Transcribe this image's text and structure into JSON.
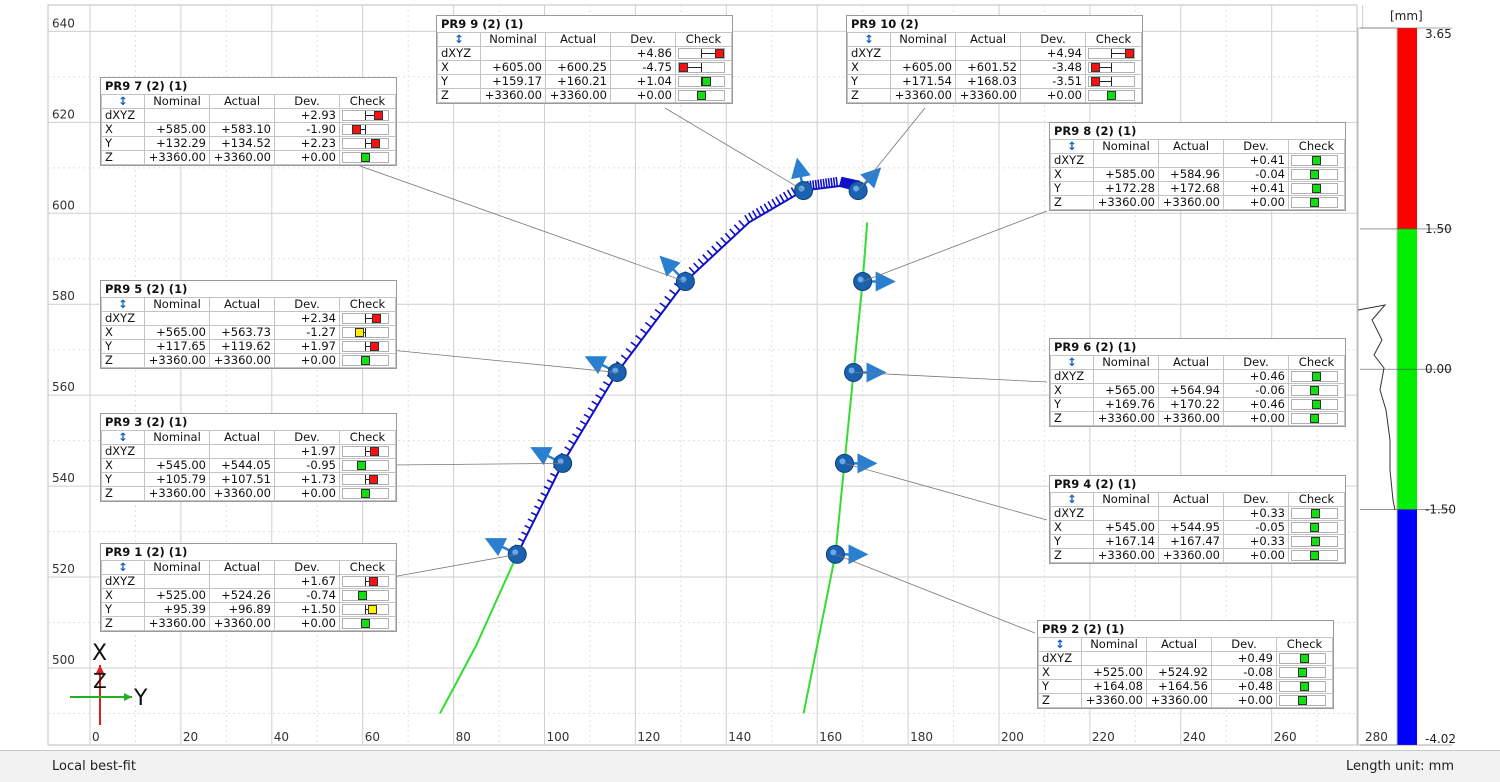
{
  "chart_data": {
    "type": "scatter",
    "title": "",
    "xlabel": "",
    "ylabel": "",
    "xlim": [
      0,
      280
    ],
    "ylim": [
      490,
      645
    ],
    "x_ticks": [
      0,
      20,
      40,
      60,
      80,
      100,
      120,
      140,
      160,
      180,
      200,
      220,
      240,
      260,
      280
    ],
    "y_ticks": [
      500,
      520,
      540,
      560,
      580,
      600,
      620,
      640
    ],
    "grid": true,
    "points": [
      {
        "name": "PR9 1",
        "x": 94,
        "y": 525
      },
      {
        "name": "PR9 3",
        "x": 104,
        "y": 545
      },
      {
        "name": "PR9 5",
        "x": 116,
        "y": 565
      },
      {
        "name": "PR9 7",
        "x": 131,
        "y": 585
      },
      {
        "name": "PR9 9",
        "x": 157,
        "y": 605
      },
      {
        "name": "PR9 10",
        "x": 169,
        "y": 605
      },
      {
        "name": "PR9 8",
        "x": 170,
        "y": 585
      },
      {
        "name": "PR9 6",
        "x": 168,
        "y": 565
      },
      {
        "name": "PR9 4",
        "x": 166,
        "y": 545
      },
      {
        "name": "PR9 2",
        "x": 164,
        "y": 525
      }
    ]
  },
  "axis_labels": {
    "x": "X",
    "z": "Z",
    "y": "Y"
  },
  "colorbar": {
    "unit": "[mm]",
    "labels": [
      "3.65",
      "1.50",
      "0.00",
      "-1.50",
      "-4.02"
    ],
    "values": [
      3.65,
      1.5,
      0.0,
      -1.5,
      -4.02
    ],
    "colors": {
      "high": "#ff0000",
      "mid": "#00ee00",
      "low": "#0000ff"
    }
  },
  "table_headers": [
    "Nominal",
    "Actual",
    "Dev.",
    "Check"
  ],
  "tables": [
    {
      "title": "PR9 9 (2) (1)",
      "rows": [
        [
          "dXYZ",
          "",
          "",
          "+4.86",
          "red"
        ],
        [
          "X",
          "+605.00",
          "+600.25",
          "-4.75",
          "red"
        ],
        [
          "Y",
          "+159.17",
          "+160.21",
          "+1.04",
          "green"
        ],
        [
          "Z",
          "+3360.00",
          "+3360.00",
          "+0.00",
          "green"
        ]
      ]
    },
    {
      "title": "PR9 10 (2)",
      "rows": [
        [
          "dXYZ",
          "",
          "",
          "+4.94",
          "red"
        ],
        [
          "X",
          "+605.00",
          "+601.52",
          "-3.48",
          "red"
        ],
        [
          "Y",
          "+171.54",
          "+168.03",
          "-3.51",
          "red"
        ],
        [
          "Z",
          "+3360.00",
          "+3360.00",
          "+0.00",
          "green"
        ]
      ]
    },
    {
      "title": "PR9 7 (2) (1)",
      "rows": [
        [
          "dXYZ",
          "",
          "",
          "+2.93",
          "red"
        ],
        [
          "X",
          "+585.00",
          "+583.10",
          "-1.90",
          "red"
        ],
        [
          "Y",
          "+132.29",
          "+134.52",
          "+2.23",
          "red"
        ],
        [
          "Z",
          "+3360.00",
          "+3360.00",
          "+0.00",
          "green"
        ]
      ]
    },
    {
      "title": "PR9 8 (2) (1)",
      "rows": [
        [
          "dXYZ",
          "",
          "",
          "+0.41",
          "green"
        ],
        [
          "X",
          "+585.00",
          "+584.96",
          "-0.04",
          "green"
        ],
        [
          "Y",
          "+172.28",
          "+172.68",
          "+0.41",
          "green"
        ],
        [
          "Z",
          "+3360.00",
          "+3360.00",
          "+0.00",
          "green"
        ]
      ]
    },
    {
      "title": "PR9 5 (2) (1)",
      "rows": [
        [
          "dXYZ",
          "",
          "",
          "+2.34",
          "red"
        ],
        [
          "X",
          "+565.00",
          "+563.73",
          "-1.27",
          "yellow"
        ],
        [
          "Y",
          "+117.65",
          "+119.62",
          "+1.97",
          "red"
        ],
        [
          "Z",
          "+3360.00",
          "+3360.00",
          "+0.00",
          "green"
        ]
      ]
    },
    {
      "title": "PR9 6 (2) (1)",
      "rows": [
        [
          "dXYZ",
          "",
          "",
          "+0.46",
          "green"
        ],
        [
          "X",
          "+565.00",
          "+564.94",
          "-0.06",
          "green"
        ],
        [
          "Y",
          "+169.76",
          "+170.22",
          "+0.46",
          "green"
        ],
        [
          "Z",
          "+3360.00",
          "+3360.00",
          "+0.00",
          "green"
        ]
      ]
    },
    {
      "title": "PR9 3 (2) (1)",
      "rows": [
        [
          "dXYZ",
          "",
          "",
          "+1.97",
          "red"
        ],
        [
          "X",
          "+545.00",
          "+544.05",
          "-0.95",
          "green"
        ],
        [
          "Y",
          "+105.79",
          "+107.51",
          "+1.73",
          "red"
        ],
        [
          "Z",
          "+3360.00",
          "+3360.00",
          "+0.00",
          "green"
        ]
      ]
    },
    {
      "title": "PR9 4 (2) (1)",
      "rows": [
        [
          "dXYZ",
          "",
          "",
          "+0.33",
          "green"
        ],
        [
          "X",
          "+545.00",
          "+544.95",
          "-0.05",
          "green"
        ],
        [
          "Y",
          "+167.14",
          "+167.47",
          "+0.33",
          "green"
        ],
        [
          "Z",
          "+3360.00",
          "+3360.00",
          "+0.00",
          "green"
        ]
      ]
    },
    {
      "title": "PR9 1 (2) (1)",
      "rows": [
        [
          "dXYZ",
          "",
          "",
          "+1.67",
          "red"
        ],
        [
          "X",
          "+525.00",
          "+524.26",
          "-0.74",
          "green"
        ],
        [
          "Y",
          "+95.39",
          "+96.89",
          "+1.50",
          "yellow"
        ],
        [
          "Z",
          "+3360.00",
          "+3360.00",
          "+0.00",
          "green"
        ]
      ]
    },
    {
      "title": "PR9 2 (2) (1)",
      "rows": [
        [
          "dXYZ",
          "",
          "",
          "+0.49",
          "green"
        ],
        [
          "X",
          "+525.00",
          "+524.92",
          "-0.08",
          "green"
        ],
        [
          "Y",
          "+164.08",
          "+164.56",
          "+0.48",
          "green"
        ],
        [
          "Z",
          "+3360.00",
          "+3360.00",
          "+0.00",
          "green"
        ]
      ]
    }
  ],
  "status": {
    "left": "Local best-fit",
    "right": "Length unit: mm"
  }
}
